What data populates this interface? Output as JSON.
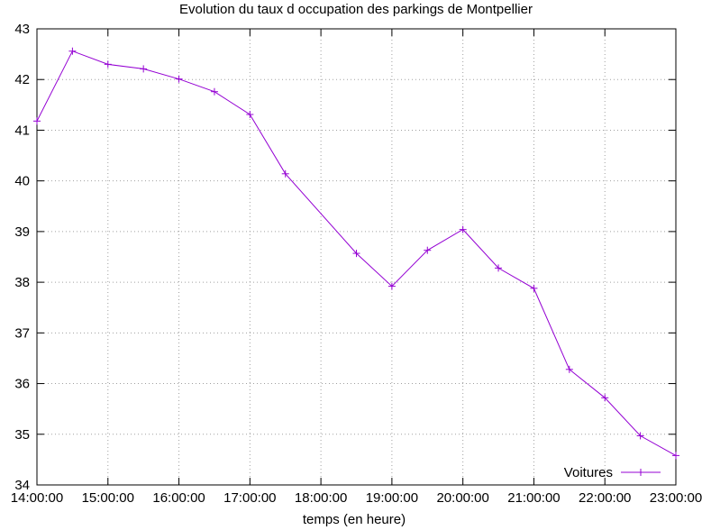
{
  "chart_data": {
    "type": "line",
    "title": "Evolution du taux d occupation des parkings de Montpellier",
    "xlabel": "temps (en heure)",
    "ylabel": "",
    "x_ticks": [
      "14:00:00",
      "15:00:00",
      "16:00:00",
      "17:00:00",
      "18:00:00",
      "19:00:00",
      "20:00:00",
      "21:00:00",
      "22:00:00",
      "23:00:00"
    ],
    "y_ticks": [
      "34",
      "35",
      "36",
      "37",
      "38",
      "39",
      "40",
      "41",
      "42",
      "43"
    ],
    "xlim": [
      "14:00:00",
      "23:00:00"
    ],
    "ylim": [
      34,
      43
    ],
    "grid": true,
    "legend_position": "bottom-right",
    "line_color": "#9400D3",
    "series": [
      {
        "name": "Voitures",
        "x": [
          "14:00:00",
          "14:30:00",
          "15:00:00",
          "15:30:00",
          "16:00:00",
          "16:30:00",
          "17:00:00",
          "17:30:00",
          "18:30:00",
          "19:00:00",
          "19:30:00",
          "20:00:00",
          "20:30:00",
          "21:00:00",
          "21:30:00",
          "22:00:00",
          "22:30:00",
          "23:00:00"
        ],
        "values": [
          41.18,
          42.56,
          42.3,
          42.21,
          42.01,
          41.76,
          41.31,
          40.14,
          38.57,
          37.92,
          38.63,
          39.04,
          38.28,
          37.88,
          36.28,
          35.72,
          34.97,
          34.58
        ]
      }
    ]
  }
}
